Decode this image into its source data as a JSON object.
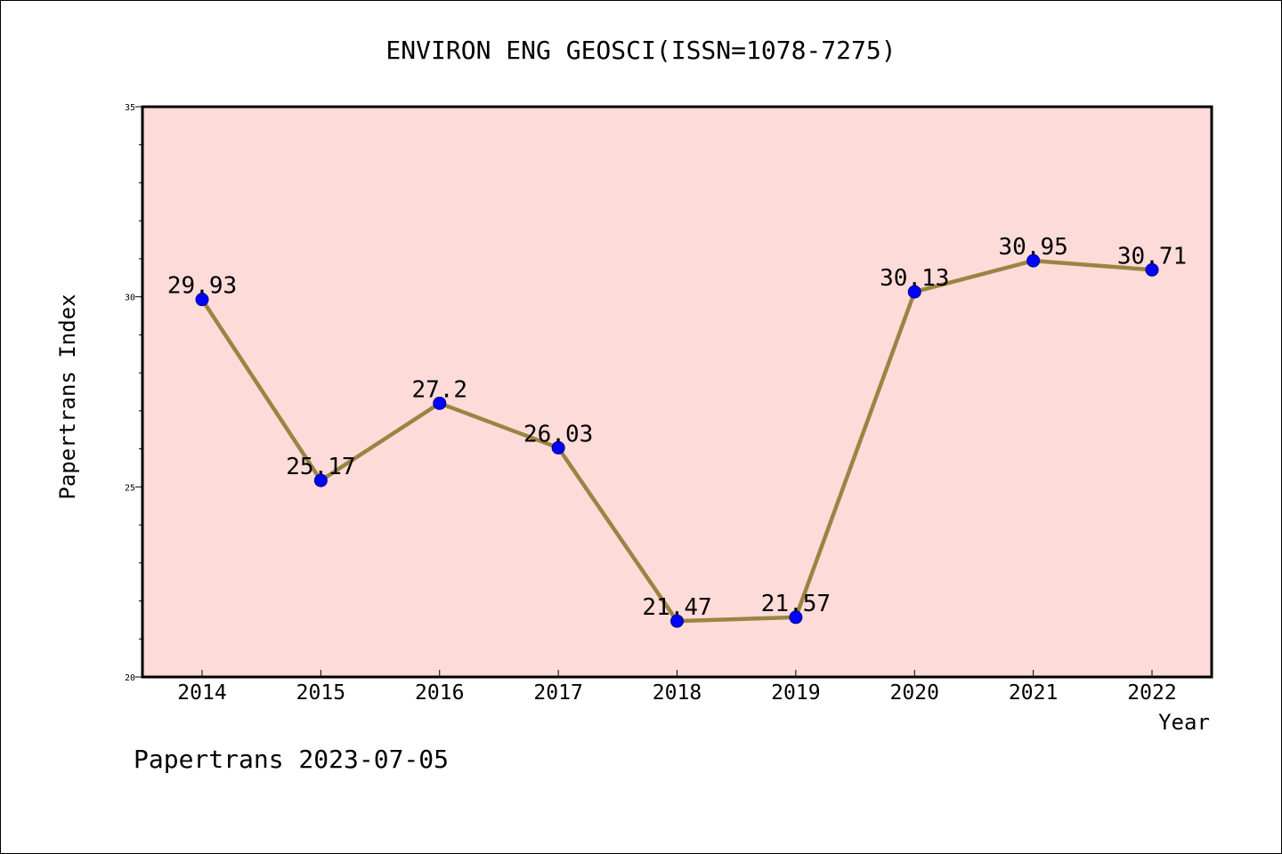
{
  "chart_data": {
    "type": "line",
    "title": "ENVIRON ENG GEOSCI(ISSN=1078-7275)",
    "xlabel": "Year",
    "ylabel": "Papertrans Index",
    "categories": [
      "2014",
      "2015",
      "2016",
      "2017",
      "2018",
      "2019",
      "2020",
      "2021",
      "2022"
    ],
    "series": [
      {
        "values": [
          29.93,
          25.17,
          27.2,
          26.03,
          21.47,
          21.57,
          30.13,
          30.95,
          30.71
        ],
        "labels": [
          "29.93",
          "25.17",
          "27.2",
          "26.03",
          "21.47",
          "21.57",
          "30.13",
          "30.95",
          "30.71"
        ]
      }
    ],
    "ylim": [
      20,
      35
    ],
    "yticks": [
      "20",
      "25",
      "30",
      "35"
    ],
    "grid": false,
    "legend": "none",
    "colors": {
      "plot_background": "#fddbd9",
      "line": "#9a8443",
      "marker": "#0000ff",
      "marker_edge": "#00008b"
    }
  },
  "footer": {
    "text": "Papertrans 2023-07-05"
  }
}
